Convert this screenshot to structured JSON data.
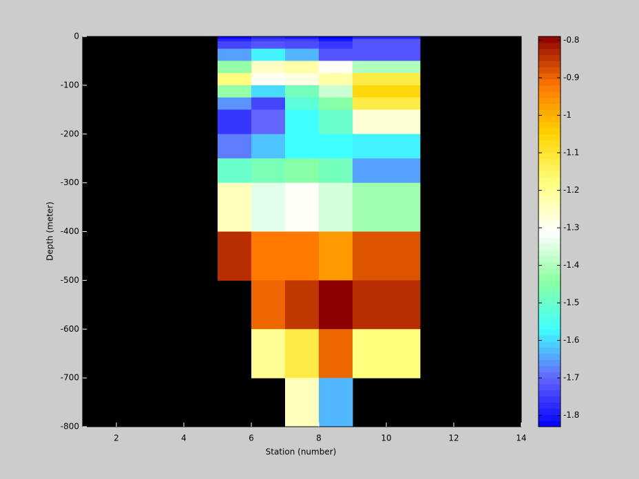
{
  "chart_data": {
    "type": "heatmap",
    "xlabel": "Station (number)",
    "ylabel": "Depth (meter)",
    "x_edges": [
      5,
      6,
      7,
      8,
      9,
      11
    ],
    "y_edges": [
      0,
      -5,
      -10,
      -25,
      -50,
      -75,
      -100,
      -125,
      -150,
      -200,
      -250,
      -300,
      -400,
      -500,
      -600,
      -700,
      -800
    ],
    "values": [
      [
        -1.82,
        -1.78,
        -1.8,
        -1.83,
        -1.78
      ],
      [
        -1.78,
        -1.75,
        -1.75,
        -1.8,
        -1.72
      ],
      [
        -1.74,
        -1.72,
        -1.73,
        -1.76,
        -1.72
      ],
      [
        -1.65,
        -1.58,
        -1.63,
        -1.72,
        -1.72
      ],
      [
        -1.43,
        -1.25,
        -1.22,
        -1.3,
        -1.4
      ],
      [
        -1.18,
        -1.3,
        -1.28,
        -1.22,
        -1.12
      ],
      [
        -1.43,
        -1.6,
        -1.48,
        -1.37,
        -1.06
      ],
      [
        -1.66,
        -1.74,
        -1.52,
        -1.45,
        -1.12
      ],
      [
        -1.76,
        -1.7,
        -1.57,
        -1.5,
        -1.27
      ],
      [
        -1.68,
        -1.62,
        -1.57,
        -1.57,
        -1.58
      ],
      [
        -1.5,
        -1.47,
        -1.45,
        -1.48,
        -1.65
      ],
      [
        -1.24,
        -1.34,
        -1.3,
        -1.36,
        -1.42
      ],
      [
        -0.84,
        -0.92,
        -0.92,
        -0.97,
        -0.88
      ],
      [
        null,
        -0.9,
        -0.85,
        -0.79,
        -0.84
      ],
      [
        null,
        -1.2,
        -1.12,
        -0.9,
        -1.18
      ],
      [
        null,
        null,
        -1.24,
        -1.63,
        null
      ]
    ],
    "xlim": [
      1,
      14
    ],
    "xticks": [
      2,
      4,
      6,
      8,
      10,
      12,
      14
    ],
    "ylim": [
      -800,
      0
    ],
    "yticks": [
      0,
      -100,
      -200,
      -300,
      -400,
      -500,
      -600,
      -700,
      -800
    ],
    "clim": [
      -1.83,
      -0.79
    ],
    "cticks": [
      -0.8,
      -0.9,
      -1,
      -1.1,
      -1.2,
      -1.3,
      -1.4,
      -1.5,
      -1.6,
      -1.7,
      -1.8
    ],
    "colormap": [
      "#0000ff",
      "#6464ff",
      "#40ffff",
      "#8cffa0",
      "#ffffff",
      "#ffff80",
      "#ffd400",
      "#ff7800",
      "#8c0000"
    ],
    "axes_color": "#000000"
  }
}
